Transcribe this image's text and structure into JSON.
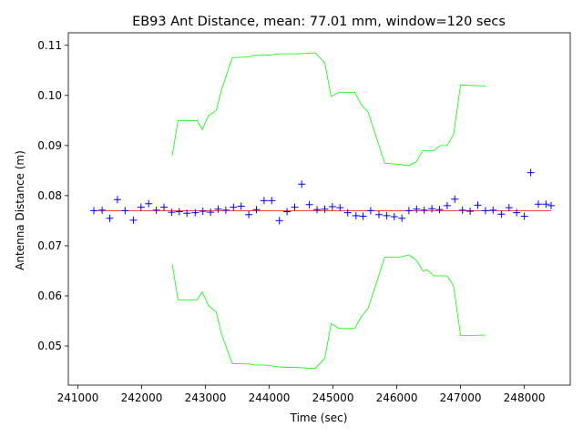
{
  "chart_data": {
    "type": "scatter",
    "title": "EB93 Ant Distance, mean: 77.01 mm, window=120 secs",
    "xlabel": "Time (sec)",
    "ylabel": "Antenna Distance (m)",
    "xlim": [
      240850,
      248720
    ],
    "ylim": [
      0.0422,
      0.1125
    ],
    "xticks": [
      241000,
      242000,
      243000,
      244000,
      245000,
      246000,
      247000,
      248000
    ],
    "xtick_labels": [
      "241000",
      "242000",
      "243000",
      "244000",
      "245000",
      "246000",
      "247000",
      "248000"
    ],
    "yticks": [
      0.05,
      0.06,
      0.07,
      0.08,
      0.09,
      0.1,
      0.11
    ],
    "ytick_labels": [
      "0.05",
      "0.06",
      "0.07",
      "0.08",
      "0.09",
      "0.10",
      "0.11"
    ],
    "grid": false,
    "colors": {
      "points": "#0000ff",
      "mean": "#ff0000",
      "band": "#00ff00"
    },
    "mean": {
      "value": 0.07701,
      "x": [
        241250,
        248420
      ]
    },
    "points": {
      "marker": "plus",
      "x": [
        241250,
        241380,
        241500,
        241620,
        241740,
        241870,
        241990,
        242110,
        242230,
        242350,
        242470,
        242590,
        242710,
        242840,
        242960,
        243080,
        243200,
        243320,
        243440,
        243560,
        243680,
        243800,
        243920,
        244040,
        244160,
        244280,
        244400,
        244510,
        244630,
        244750,
        244870,
        244990,
        245110,
        245230,
        245360,
        245470,
        245590,
        245720,
        245840,
        245960,
        246080,
        246190,
        246310,
        246430,
        246550,
        246670,
        246790,
        246910,
        247030,
        247150,
        247270,
        247390,
        247510,
        247640,
        247760,
        247880,
        248000,
        248100,
        248220,
        248340,
        248420
      ],
      "y": [
        0.077,
        0.0771,
        0.0755,
        0.0792,
        0.077,
        0.0751,
        0.0777,
        0.0784,
        0.0771,
        0.0777,
        0.0767,
        0.0768,
        0.0765,
        0.0766,
        0.0769,
        0.0767,
        0.0773,
        0.0771,
        0.0777,
        0.0779,
        0.0762,
        0.0772,
        0.079,
        0.079,
        0.075,
        0.0768,
        0.0777,
        0.0823,
        0.0782,
        0.0772,
        0.0773,
        0.0778,
        0.0776,
        0.0766,
        0.076,
        0.0759,
        0.077,
        0.0762,
        0.076,
        0.0758,
        0.0755,
        0.077,
        0.0773,
        0.0771,
        0.0774,
        0.0772,
        0.078,
        0.0793,
        0.0771,
        0.0769,
        0.0781,
        0.077,
        0.0771,
        0.0763,
        0.0776,
        0.0766,
        0.0759,
        0.0846,
        0.0783,
        0.0783,
        0.078
      ]
    },
    "band_upper": {
      "x": [
        242480,
        242570,
        242700,
        242870,
        242950,
        243050,
        243170,
        243250,
        243420,
        243700,
        243770,
        243940,
        244180,
        244460,
        244720,
        244870,
        244970,
        245090,
        245340,
        245450,
        245550,
        245810,
        246070,
        246190,
        246300,
        246410,
        246480,
        246580,
        246680,
        246790,
        246890,
        247000,
        247150,
        247390
      ],
      "y": [
        0.088,
        0.095,
        0.095,
        0.095,
        0.0932,
        0.096,
        0.097,
        0.101,
        0.1075,
        0.1077,
        0.108,
        0.108,
        0.1083,
        0.1083,
        0.1085,
        0.1065,
        0.0998,
        0.1006,
        0.1006,
        0.098,
        0.0967,
        0.0865,
        0.0862,
        0.086,
        0.0867,
        0.089,
        0.089,
        0.089,
        0.09,
        0.09,
        0.0922,
        0.1021,
        0.102,
        0.1019
      ]
    },
    "band_lower": {
      "x": [
        242480,
        242570,
        242700,
        242870,
        242950,
        243050,
        243170,
        243250,
        243420,
        243700,
        243770,
        243940,
        244180,
        244460,
        244720,
        244870,
        244970,
        245090,
        245340,
        245450,
        245550,
        245810,
        246070,
        246190,
        246300,
        246410,
        246480,
        246580,
        246680,
        246790,
        246890,
        247000,
        247150,
        247390
      ],
      "y": [
        0.0663,
        0.0592,
        0.0592,
        0.0592,
        0.0608,
        0.058,
        0.0568,
        0.0525,
        0.0465,
        0.0464,
        0.0462,
        0.0462,
        0.0458,
        0.0457,
        0.0455,
        0.0475,
        0.0545,
        0.0535,
        0.0535,
        0.056,
        0.0575,
        0.0677,
        0.0678,
        0.0682,
        0.0672,
        0.065,
        0.0652,
        0.064,
        0.064,
        0.064,
        0.062,
        0.0521,
        0.0521,
        0.0522
      ]
    }
  }
}
